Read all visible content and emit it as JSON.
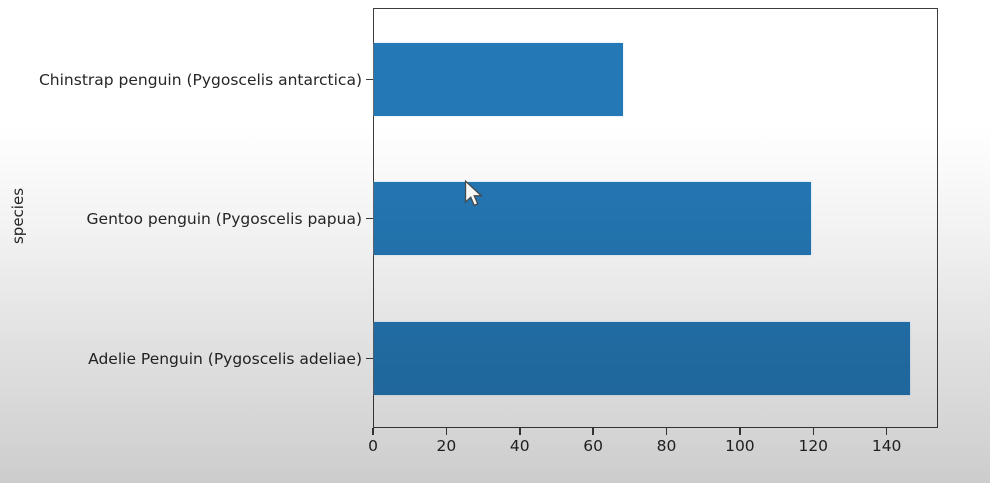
{
  "chart_data": {
    "type": "bar",
    "orientation": "horizontal",
    "title": "",
    "xlabel": "",
    "ylabel": "species",
    "categories_order": "top-to-bottom",
    "categories": [
      "Chinstrap penguin (Pygoscelis antarctica)",
      "Gentoo penguin (Pygoscelis papua)",
      "Adelie Penguin (Pygoscelis adeliae)"
    ],
    "values": [
      68,
      119,
      146
    ],
    "x_ticks": [
      0,
      20,
      40,
      60,
      80,
      100,
      120,
      140
    ],
    "xlim": [
      0,
      154
    ],
    "grid": false,
    "legend": null,
    "bar_color": "#2478b6",
    "axis_color": "#3c3c3c",
    "text_color": "#262626"
  },
  "cursor": {
    "type": "arrow-pointer"
  }
}
